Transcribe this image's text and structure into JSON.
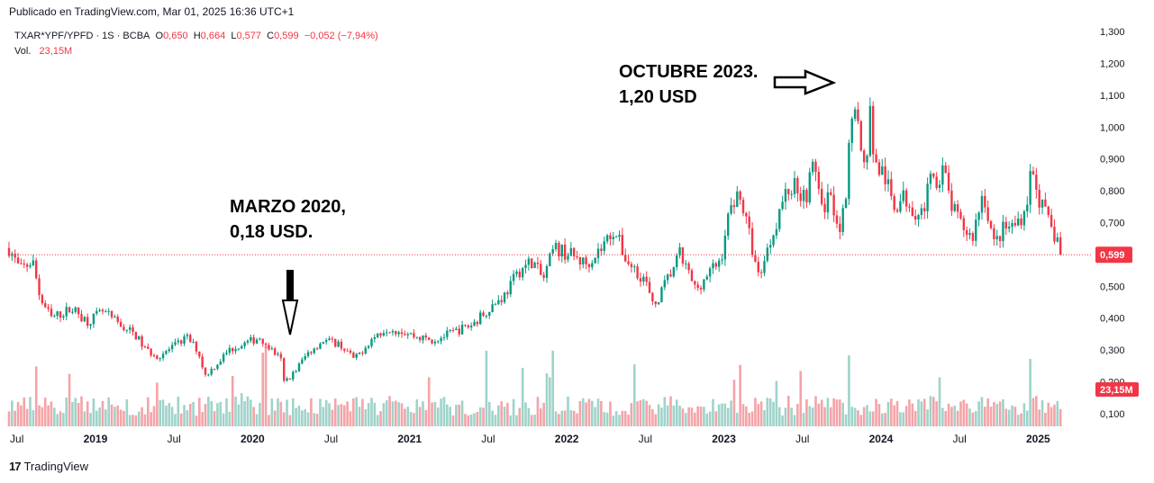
{
  "header": {
    "published": "Publicado en TradingView.com, Mar 01, 2025 16:36 UTC+1"
  },
  "legend": {
    "symbol": "TXAR*YPF/YPFD · 1S · BCBA",
    "o_label": "O",
    "o": "0,650",
    "h_label": "H",
    "h": "0,664",
    "l_label": "L",
    "l": "0,577",
    "c_label": "C",
    "c": "0,599",
    "change": "−0,052 (−7,94%)",
    "vol_label": "Vol.",
    "vol": "23,15M"
  },
  "annotations": {
    "marzo_line1": "MARZO 2020,",
    "marzo_line2": "0,18 USD.",
    "octubre_line1": "OCTUBRE 2023.",
    "octubre_line2": "1,20 USD"
  },
  "footer": {
    "brand": "TradingView",
    "logo_text": "17"
  },
  "colors": {
    "up": "#089981",
    "down": "#f23645",
    "vol_up": "#9fd3ca",
    "vol_down": "#f4a4a8",
    "price_line": "#f23645"
  },
  "chart_data": {
    "type": "candlestick",
    "price_axis": {
      "ticks": [
        "1,300",
        "1,200",
        "1,100",
        "1,000",
        "0,900",
        "0,800",
        "0,700",
        "0,600",
        "0,500",
        "0,400",
        "0,300",
        "0,200",
        "0,100"
      ],
      "range": [
        0.06,
        1.32
      ]
    },
    "time_axis": {
      "ticks": [
        {
          "label": "Jul",
          "t": 2018.5
        },
        {
          "label": "2019",
          "t": 2019.0
        },
        {
          "label": "Jul",
          "t": 2019.5
        },
        {
          "label": "2020",
          "t": 2020.0
        },
        {
          "label": "Jul",
          "t": 2020.5
        },
        {
          "label": "2021",
          "t": 2021.0
        },
        {
          "label": "Jul",
          "t": 2021.5
        },
        {
          "label": "2022",
          "t": 2022.0
        },
        {
          "label": "Jul",
          "t": 2022.5
        },
        {
          "label": "2023",
          "t": 2023.0
        },
        {
          "label": "Jul",
          "t": 2023.5
        },
        {
          "label": "2024",
          "t": 2024.0
        },
        {
          "label": "Jul",
          "t": 2024.5
        },
        {
          "label": "2025",
          "t": 2025.0
        }
      ],
      "range": [
        2018.45,
        2025.17
      ]
    },
    "last_price": {
      "value": 0.599,
      "label": "0,599"
    },
    "last_volume": {
      "label": "23,15M"
    },
    "close_path": [
      [
        2018.45,
        0.62
      ],
      [
        2018.52,
        0.55
      ],
      [
        2018.6,
        0.58
      ],
      [
        2018.65,
        0.46
      ],
      [
        2018.72,
        0.4
      ],
      [
        2018.85,
        0.43
      ],
      [
        2018.95,
        0.39
      ],
      [
        2019.05,
        0.42
      ],
      [
        2019.15,
        0.38
      ],
      [
        2019.25,
        0.35
      ],
      [
        2019.32,
        0.3
      ],
      [
        2019.4,
        0.28
      ],
      [
        2019.5,
        0.31
      ],
      [
        2019.58,
        0.34
      ],
      [
        2019.65,
        0.3
      ],
      [
        2019.7,
        0.22
      ],
      [
        2019.78,
        0.26
      ],
      [
        2019.85,
        0.3
      ],
      [
        2019.95,
        0.32
      ],
      [
        2020.05,
        0.34
      ],
      [
        2020.12,
        0.3
      ],
      [
        2020.18,
        0.27
      ],
      [
        2020.2,
        0.2
      ],
      [
        2020.25,
        0.22
      ],
      [
        2020.35,
        0.29
      ],
      [
        2020.45,
        0.33
      ],
      [
        2020.55,
        0.32
      ],
      [
        2020.65,
        0.27
      ],
      [
        2020.75,
        0.33
      ],
      [
        2020.85,
        0.37
      ],
      [
        2020.95,
        0.36
      ],
      [
        2021.05,
        0.34
      ],
      [
        2021.15,
        0.33
      ],
      [
        2021.25,
        0.35
      ],
      [
        2021.4,
        0.38
      ],
      [
        2021.5,
        0.43
      ],
      [
        2021.6,
        0.47
      ],
      [
        2021.7,
        0.55
      ],
      [
        2021.78,
        0.58
      ],
      [
        2021.85,
        0.52
      ],
      [
        2021.92,
        0.62
      ],
      [
        2022.02,
        0.6
      ],
      [
        2022.12,
        0.57
      ],
      [
        2022.22,
        0.62
      ],
      [
        2022.3,
        0.68
      ],
      [
        2022.38,
        0.58
      ],
      [
        2022.5,
        0.52
      ],
      [
        2022.55,
        0.43
      ],
      [
        2022.62,
        0.5
      ],
      [
        2022.72,
        0.6
      ],
      [
        2022.82,
        0.49
      ],
      [
        2022.92,
        0.55
      ],
      [
        2022.98,
        0.58
      ],
      [
        2023.02,
        0.7
      ],
      [
        2023.08,
        0.8
      ],
      [
        2023.12,
        0.75
      ],
      [
        2023.18,
        0.62
      ],
      [
        2023.22,
        0.53
      ],
      [
        2023.3,
        0.65
      ],
      [
        2023.38,
        0.78
      ],
      [
        2023.45,
        0.82
      ],
      [
        2023.52,
        0.78
      ],
      [
        2023.58,
        0.9
      ],
      [
        2023.62,
        0.73
      ],
      [
        2023.68,
        0.8
      ],
      [
        2023.73,
        0.68
      ],
      [
        2023.78,
        0.75
      ],
      [
        2023.8,
        0.98
      ],
      [
        2023.83,
        1.12
      ],
      [
        2023.87,
        0.92
      ],
      [
        2023.9,
        0.87
      ],
      [
        2023.93,
        1.05
      ],
      [
        2023.96,
        0.88
      ],
      [
        2024.02,
        0.85
      ],
      [
        2024.08,
        0.75
      ],
      [
        2024.15,
        0.78
      ],
      [
        2024.25,
        0.72
      ],
      [
        2024.32,
        0.83
      ],
      [
        2024.4,
        0.86
      ],
      [
        2024.45,
        0.75
      ],
      [
        2024.5,
        0.7
      ],
      [
        2024.58,
        0.65
      ],
      [
        2024.65,
        0.8
      ],
      [
        2024.72,
        0.63
      ],
      [
        2024.78,
        0.68
      ],
      [
        2024.85,
        0.69
      ],
      [
        2024.92,
        0.74
      ],
      [
        2024.96,
        0.88
      ],
      [
        2025.0,
        0.78
      ],
      [
        2025.05,
        0.72
      ],
      [
        2025.1,
        0.66
      ],
      [
        2025.13,
        0.65
      ],
      [
        2025.15,
        0.599
      ]
    ]
  }
}
